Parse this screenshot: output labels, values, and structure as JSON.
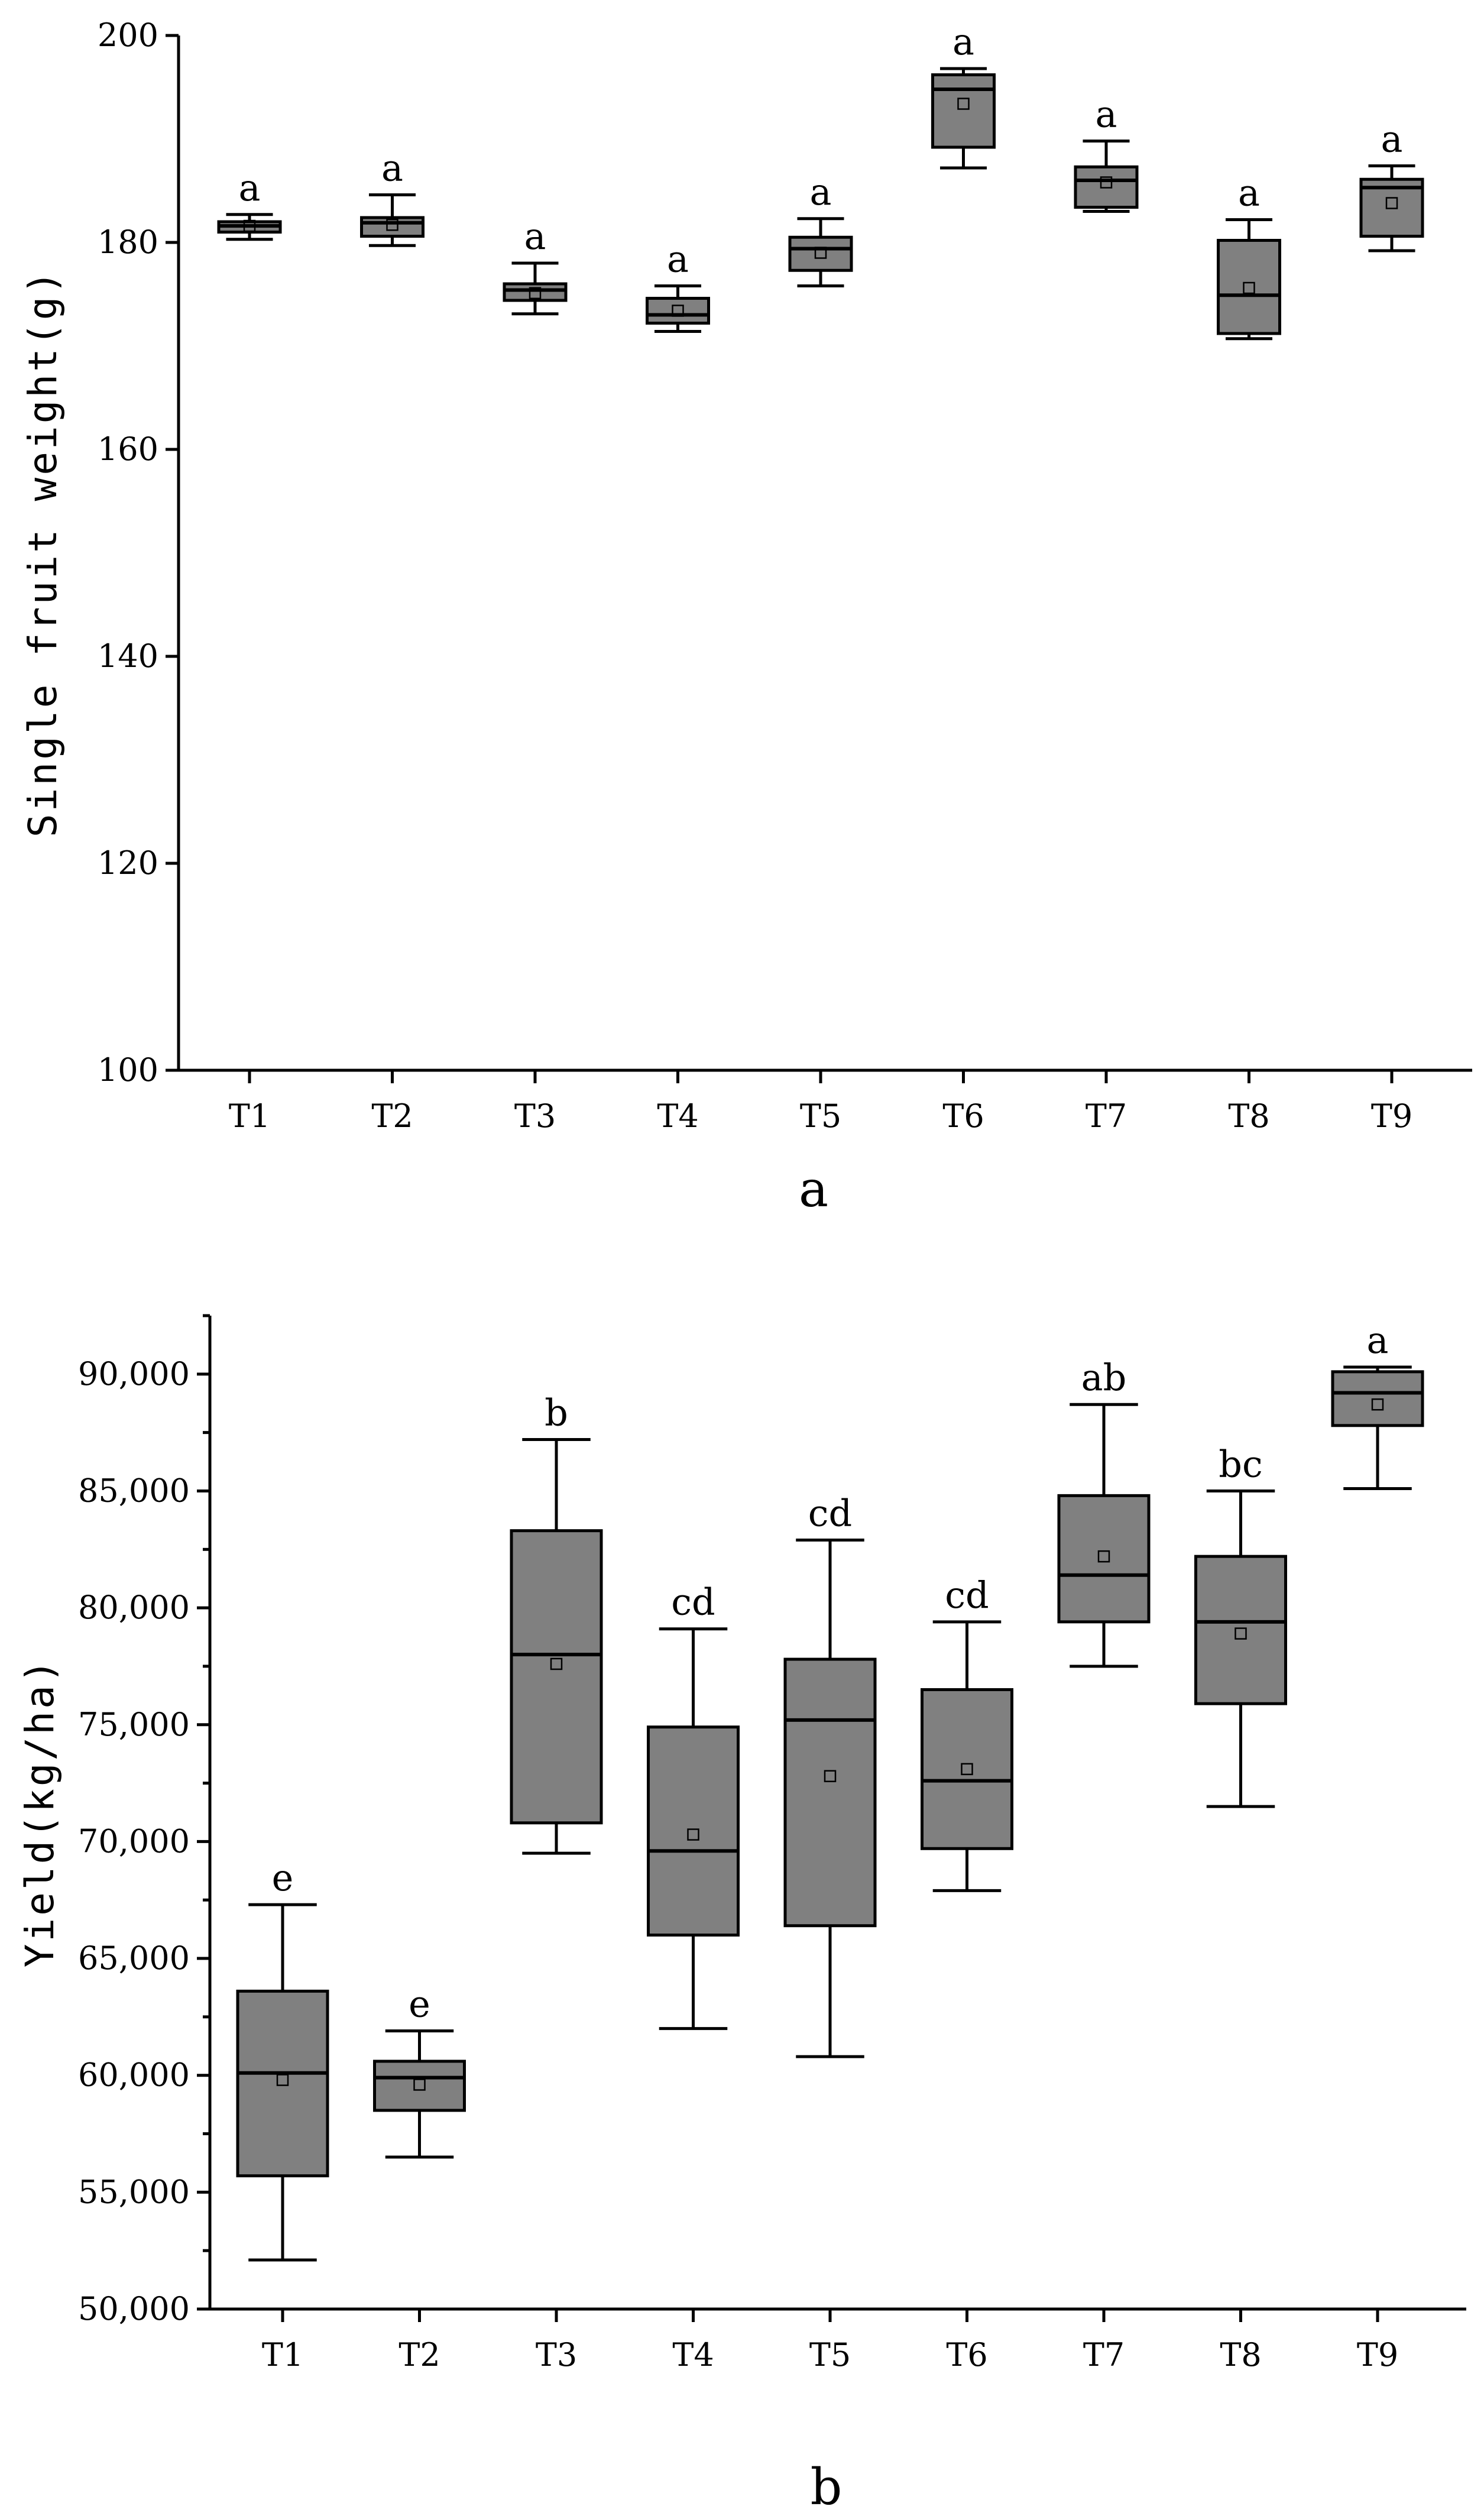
{
  "chart_data": [
    {
      "type": "box",
      "panel_label": "a",
      "xlabel": "",
      "ylabel": "Single fruit weight(g)",
      "ylim": [
        100,
        200
      ],
      "yticks": [
        100,
        120,
        140,
        160,
        180,
        200
      ],
      "ytick_labels": [
        "100",
        "120",
        "140",
        "160",
        "180",
        "200"
      ],
      "categories": [
        "T1",
        "T2",
        "T3",
        "T4",
        "T5",
        "T6",
        "T7",
        "T8",
        "T9"
      ],
      "boxes": [
        {
          "min": 180.3,
          "q1": 181.0,
          "median": 181.6,
          "q3": 182.0,
          "max": 182.7,
          "mean": 181.6,
          "sig": "a"
        },
        {
          "min": 179.7,
          "q1": 180.6,
          "median": 181.9,
          "q3": 182.4,
          "max": 184.6,
          "mean": 181.7,
          "sig": "a"
        },
        {
          "min": 173.1,
          "q1": 174.4,
          "median": 175.4,
          "q3": 176.0,
          "max": 178.0,
          "mean": 175.1,
          "sig": "a"
        },
        {
          "min": 171.4,
          "q1": 172.2,
          "median": 173.0,
          "q3": 174.6,
          "max": 175.8,
          "mean": 173.4,
          "sig": "a"
        },
        {
          "min": 175.8,
          "q1": 177.3,
          "median": 179.4,
          "q3": 180.5,
          "max": 182.3,
          "mean": 179.0,
          "sig": "a"
        },
        {
          "min": 187.2,
          "q1": 189.2,
          "median": 194.8,
          "q3": 196.2,
          "max": 196.8,
          "mean": 193.4,
          "sig": "a"
        },
        {
          "min": 183.0,
          "q1": 183.4,
          "median": 186.0,
          "q3": 187.3,
          "max": 189.8,
          "mean": 185.8,
          "sig": "a"
        },
        {
          "min": 170.7,
          "q1": 171.2,
          "median": 174.9,
          "q3": 180.2,
          "max": 182.2,
          "mean": 175.6,
          "sig": "a"
        },
        {
          "min": 179.2,
          "q1": 180.6,
          "median": 185.3,
          "q3": 186.1,
          "max": 187.4,
          "mean": 183.8,
          "sig": "a"
        }
      ]
    },
    {
      "type": "box",
      "panel_label": "b",
      "xlabel": "",
      "ylabel": "Yield(kg/ha)",
      "ylim": [
        50000,
        92500
      ],
      "yticks": [
        50000,
        55000,
        60000,
        65000,
        70000,
        75000,
        80000,
        85000,
        90000
      ],
      "ytick_labels": [
        "50,000",
        "55,000",
        "60,000",
        "65,000",
        "70,000",
        "75,000",
        "80,000",
        "85,000",
        "90,000"
      ],
      "categories": [
        "T1",
        "T2",
        "T3",
        "T4",
        "T5",
        "T6",
        "T7",
        "T8",
        "T9"
      ],
      "boxes": [
        {
          "min": 52100,
          "q1": 55700,
          "median": 60100,
          "q3": 63600,
          "max": 67300,
          "mean": 59800,
          "sig": "e"
        },
        {
          "min": 56500,
          "q1": 58500,
          "median": 59900,
          "q3": 60600,
          "max": 61900,
          "mean": 59600,
          "sig": "e"
        },
        {
          "min": 69500,
          "q1": 70800,
          "median": 78000,
          "q3": 83300,
          "max": 87200,
          "mean": 77600,
          "sig": "b"
        },
        {
          "min": 62000,
          "q1": 66000,
          "median": 69600,
          "q3": 74900,
          "max": 79100,
          "mean": 70300,
          "sig": "cd"
        },
        {
          "min": 60800,
          "q1": 66400,
          "median": 75200,
          "q3": 77800,
          "max": 82900,
          "mean": 72800,
          "sig": "cd"
        },
        {
          "min": 67900,
          "q1": 69700,
          "median": 72600,
          "q3": 76500,
          "max": 79400,
          "mean": 73100,
          "sig": "cd"
        },
        {
          "min": 77500,
          "q1": 79400,
          "median": 81400,
          "q3": 84800,
          "max": 88700,
          "mean": 82200,
          "sig": "ab"
        },
        {
          "min": 71500,
          "q1": 75900,
          "median": 79400,
          "q3": 82200,
          "max": 85000,
          "mean": 78900,
          "sig": "bc"
        },
        {
          "min": 85100,
          "q1": 87800,
          "median": 89200,
          "q3": 90100,
          "max": 90300,
          "mean": 88700,
          "sig": "a"
        }
      ]
    }
  ]
}
